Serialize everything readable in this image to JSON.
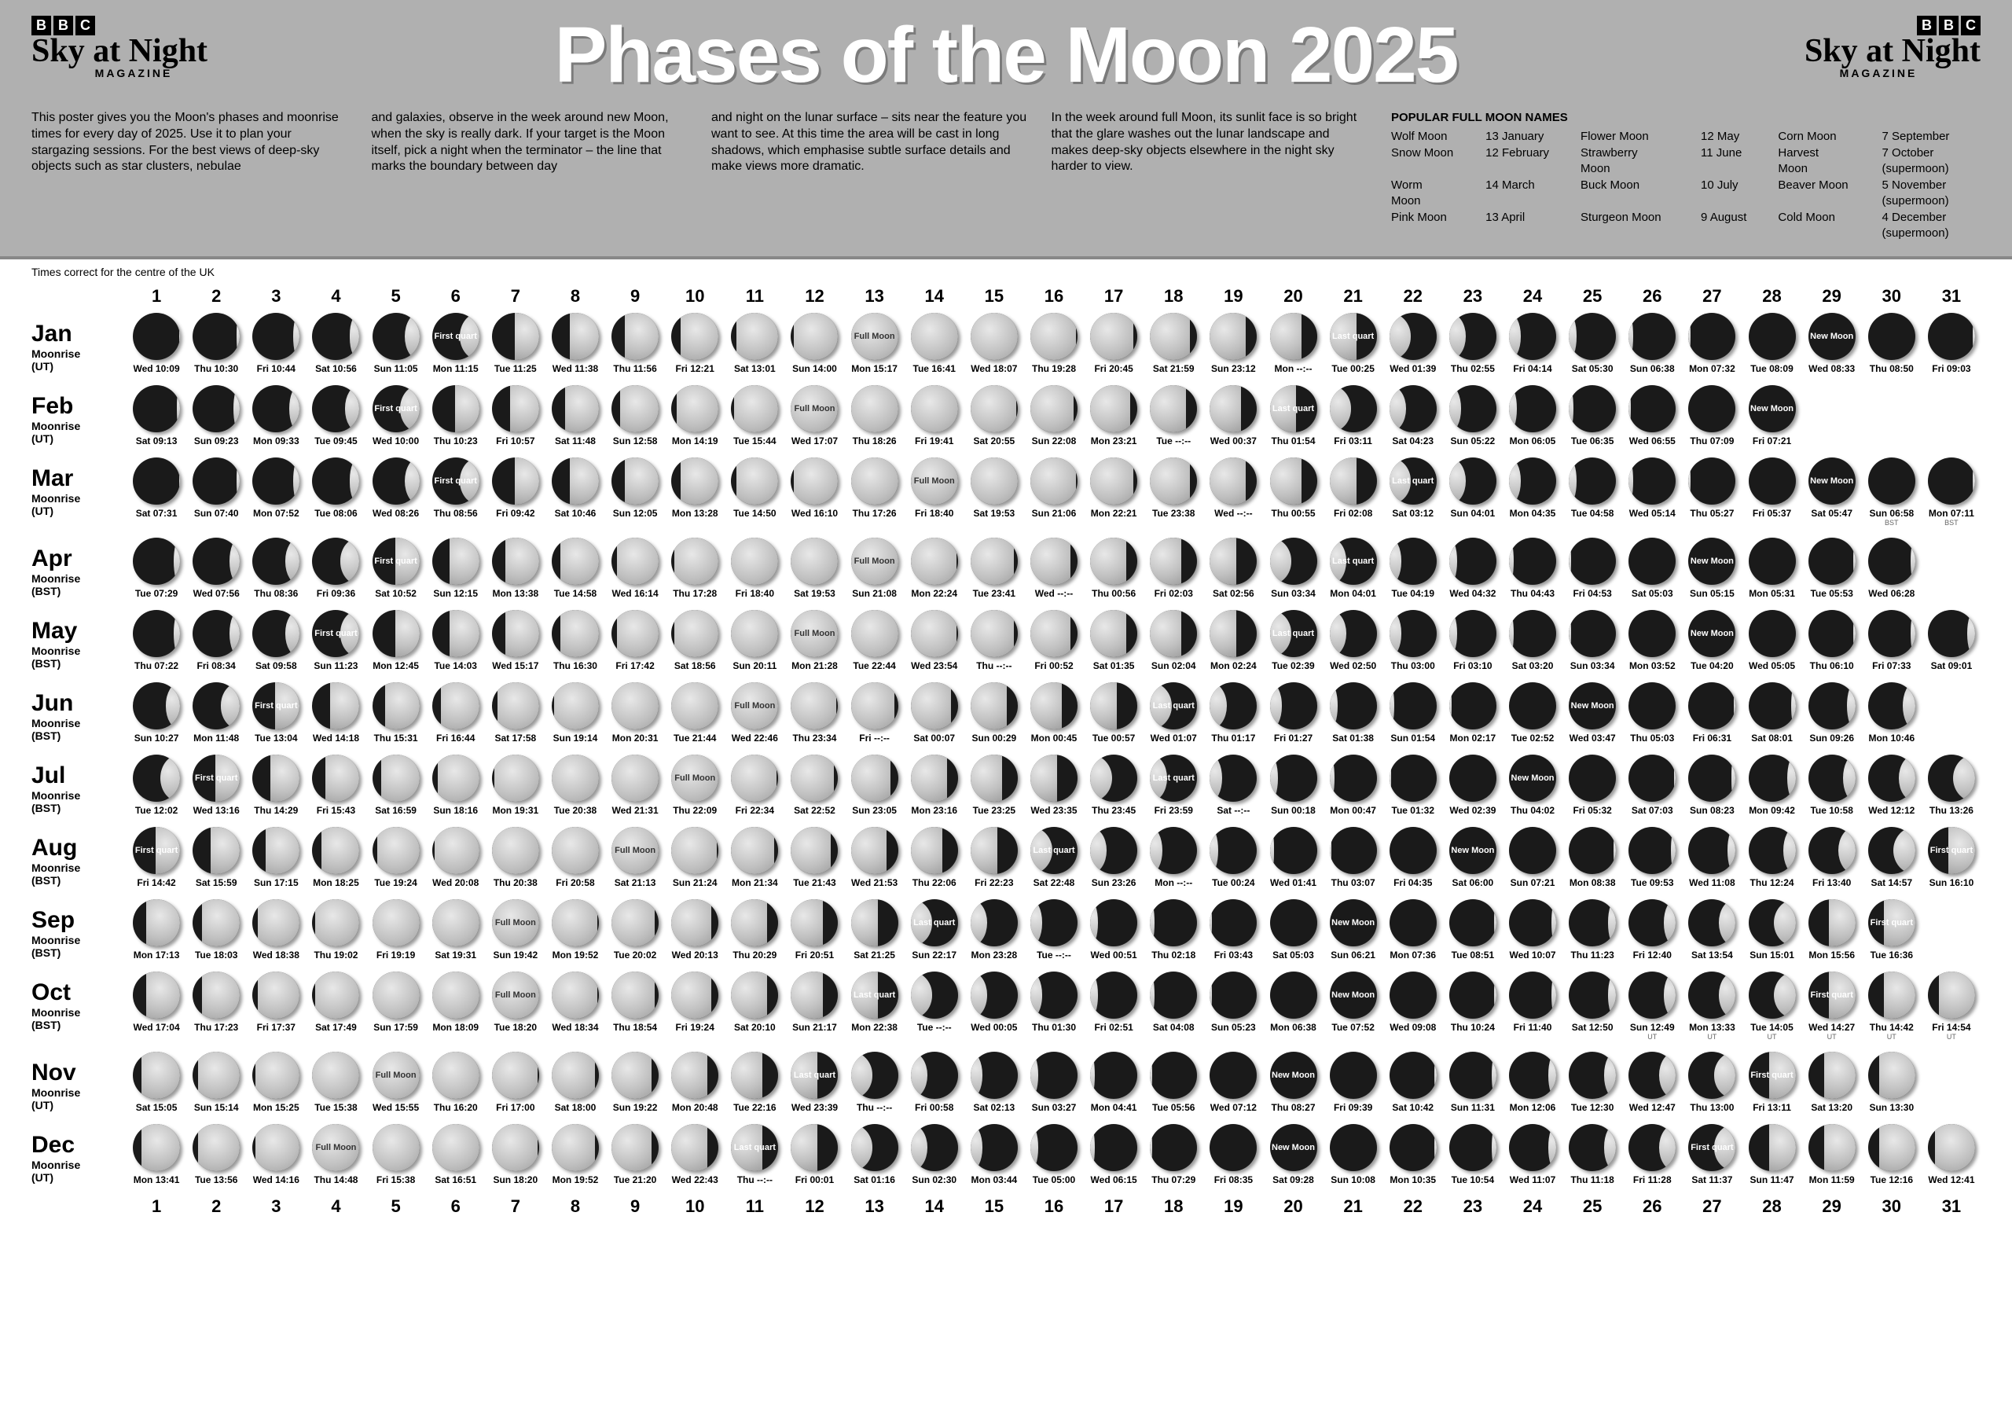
{
  "logo": {
    "bbc": [
      "B",
      "B",
      "C"
    ],
    "name": "Sky at Night",
    "sub": "MAGAZINE"
  },
  "title": "Phases of the Moon 2025",
  "intro": [
    "This poster gives you the Moon's phases and moonrise times for every day of 2025. Use it to plan your stargazing sessions. For the best views of deep-sky objects such as star clusters, nebulae",
    "and galaxies, observe in the week around new Moon, when the sky is really dark. If your target is the Moon itself, pick a night when the terminator – the line that marks the boundary between day",
    "and night on the lunar surface – sits near the feature you want to see. At this time the area will be cast in long shadows, which emphasise subtle surface details and make views more dramatic.",
    "In the week around full Moon, its sunlit face is so bright that the glare washes out the lunar landscape and makes deep-sky objects elsewhere in the night sky harder to view."
  ],
  "namesTitle": "POPULAR FULL MOON NAMES",
  "moonNames": [
    [
      "Wolf Moon",
      "13 January"
    ],
    [
      "Flower Moon",
      "12 May"
    ],
    [
      "Corn Moon",
      "7 September"
    ],
    [
      "Snow Moon",
      "12 February"
    ],
    [
      "Strawberry Moon",
      "11 June"
    ],
    [
      "Harvest Moon",
      "7 October (supermoon)"
    ],
    [
      "Worm Moon",
      "14 March"
    ],
    [
      "Buck Moon",
      "10 July"
    ],
    [
      "Beaver Moon",
      "5 November (supermoon)"
    ],
    [
      "Pink Moon",
      "13 April"
    ],
    [
      "Sturgeon Moon",
      "9 August"
    ],
    [
      "Cold Moon",
      "4 December (supermoon)"
    ]
  ],
  "note": "Times correct for the centre of the UK",
  "phaseLabels": {
    "new": "New Moon",
    "fq": "First quart",
    "full": "Full Moon",
    "lq": "Last quart"
  },
  "months": [
    {
      "name": "Jan",
      "sub": "Moonrise",
      "tz": "(UT)",
      "ndays": 31,
      "new": 29,
      "fq": 6,
      "full": 13,
      "lq": 21,
      "times": [
        "Wed 10:09",
        "Thu 10:30",
        "Fri 10:44",
        "Sat 10:56",
        "Sun 11:05",
        "Mon 11:15",
        "Tue 11:25",
        "Wed 11:38",
        "Thu 11:56",
        "Fri 12:21",
        "Sat 13:01",
        "Sun 14:00",
        "Mon 15:17",
        "Tue 16:41",
        "Wed 18:07",
        "Thu 19:28",
        "Fri 20:45",
        "Sat 21:59",
        "Sun 23:12",
        "Mon --:--",
        "Tue 00:25",
        "Wed 01:39",
        "Thu 02:55",
        "Fri 04:14",
        "Sat 05:30",
        "Sun 06:38",
        "Mon 07:32",
        "Tue 08:09",
        "Wed 08:33",
        "Thu 08:50",
        "Fri 09:03"
      ]
    },
    {
      "name": "Feb",
      "sub": "Moonrise",
      "tz": "(UT)",
      "ndays": 28,
      "new": 28,
      "fq": 5,
      "full": 12,
      "lq": 20,
      "times": [
        "Sat 09:13",
        "Sun 09:23",
        "Mon 09:33",
        "Tue 09:45",
        "Wed 10:00",
        "Thu 10:23",
        "Fri 10:57",
        "Sat 11:48",
        "Sun 12:58",
        "Mon 14:19",
        "Tue 15:44",
        "Wed 17:07",
        "Thu 18:26",
        "Fri 19:41",
        "Sat 20:55",
        "Sun 22:08",
        "Mon 23:21",
        "Tue --:--",
        "Wed 00:37",
        "Thu 01:54",
        "Fri 03:11",
        "Sat 04:23",
        "Sun 05:22",
        "Mon 06:05",
        "Tue 06:35",
        "Wed 06:55",
        "Thu 07:09",
        "Fri 07:21"
      ]
    },
    {
      "name": "Mar",
      "sub": "Moonrise",
      "tz": "(UT)",
      "ndays": 31,
      "new": 29,
      "fq": 6,
      "full": 14,
      "lq": 22,
      "times": [
        "Sat 07:31",
        "Sun 07:40",
        "Mon 07:52",
        "Tue 08:06",
        "Wed 08:26",
        "Thu 08:56",
        "Fri 09:42",
        "Sat 10:46",
        "Sun 12:05",
        "Mon 13:28",
        "Tue 14:50",
        "Wed 16:10",
        "Thu 17:26",
        "Fri 18:40",
        "Sat 19:53",
        "Sun 21:06",
        "Mon 22:21",
        "Tue 23:38",
        "Wed --:--",
        "Thu 00:55",
        "Fri 02:08",
        "Sat 03:12",
        "Sun 04:01",
        "Mon 04:35",
        "Tue 04:58",
        "Wed 05:14",
        "Thu 05:27",
        "Fri 05:37",
        "Sat 05:47",
        "Sun 06:58",
        "Mon 07:11"
      ],
      "notes": {
        "30": "BST",
        "31": "BST"
      }
    },
    {
      "name": "Apr",
      "sub": "Moonrise",
      "tz": "(BST)",
      "ndays": 30,
      "new": 27,
      "fq": 5,
      "full": 13,
      "lq": 21,
      "times": [
        "Tue 07:29",
        "Wed 07:56",
        "Thu 08:36",
        "Fri 09:36",
        "Sat 10:52",
        "Sun 12:15",
        "Mon 13:38",
        "Tue 14:58",
        "Wed 16:14",
        "Thu 17:28",
        "Fri 18:40",
        "Sat 19:53",
        "Sun 21:08",
        "Mon 22:24",
        "Tue 23:41",
        "Wed --:--",
        "Thu 00:56",
        "Fri 02:03",
        "Sat 02:56",
        "Sun 03:34",
        "Mon 04:01",
        "Tue 04:19",
        "Wed 04:32",
        "Thu 04:43",
        "Fri 04:53",
        "Sat 05:03",
        "Sun 05:15",
        "Mon 05:31",
        "Tue 05:53",
        "Wed 06:28"
      ]
    },
    {
      "name": "May",
      "sub": "Moonrise",
      "tz": "(BST)",
      "ndays": 31,
      "new": 27,
      "fq": 4,
      "full": 12,
      "lq": 20,
      "times": [
        "Thu 07:22",
        "Fri 08:34",
        "Sat 09:58",
        "Sun 11:23",
        "Mon 12:45",
        "Tue 14:03",
        "Wed 15:17",
        "Thu 16:30",
        "Fri 17:42",
        "Sat 18:56",
        "Sun 20:11",
        "Mon 21:28",
        "Tue 22:44",
        "Wed 23:54",
        "Thu --:--",
        "Fri 00:52",
        "Sat 01:35",
        "Sun 02:04",
        "Mon 02:24",
        "Tue 02:39",
        "Wed 02:50",
        "Thu 03:00",
        "Fri 03:10",
        "Sat 03:20",
        "Sun 03:34",
        "Mon 03:52",
        "Tue 04:20",
        "Wed 05:05",
        "Thu 06:10",
        "Fri 07:33",
        "Sat 09:01"
      ]
    },
    {
      "name": "Jun",
      "sub": "Moonrise",
      "tz": "(BST)",
      "ndays": 30,
      "new": 25,
      "fq": 3,
      "full": 11,
      "lq": 18,
      "times": [
        "Sun 10:27",
        "Mon 11:48",
        "Tue 13:04",
        "Wed 14:18",
        "Thu 15:31",
        "Fri 16:44",
        "Sat 17:58",
        "Sun 19:14",
        "Mon 20:31",
        "Tue 21:44",
        "Wed 22:46",
        "Thu 23:34",
        "Fri --:--",
        "Sat 00:07",
        "Sun 00:29",
        "Mon 00:45",
        "Tue 00:57",
        "Wed 01:07",
        "Thu 01:17",
        "Fri 01:27",
        "Sat 01:38",
        "Sun 01:54",
        "Mon 02:17",
        "Tue 02:52",
        "Wed 03:47",
        "Thu 05:03",
        "Fri 06:31",
        "Sat 08:01",
        "Sun 09:26",
        "Mon 10:46"
      ]
    },
    {
      "name": "Jul",
      "sub": "Moonrise",
      "tz": "(BST)",
      "ndays": 31,
      "new": 24,
      "fq": 2,
      "full": 10,
      "lq": 18,
      "times": [
        "Tue 12:02",
        "Wed 13:16",
        "Thu 14:29",
        "Fri 15:43",
        "Sat 16:59",
        "Sun 18:16",
        "Mon 19:31",
        "Tue 20:38",
        "Wed 21:31",
        "Thu 22:09",
        "Fri 22:34",
        "Sat 22:52",
        "Sun 23:05",
        "Mon 23:16",
        "Tue 23:25",
        "Wed 23:35",
        "Thu 23:45",
        "Fri 23:59",
        "Sat --:--",
        "Sun 00:18",
        "Mon 00:47",
        "Tue 01:32",
        "Wed 02:39",
        "Thu 04:02",
        "Fri 05:32",
        "Sat 07:03",
        "Sun 08:23",
        "Mon 09:42",
        "Tue 10:58",
        "Wed 12:12",
        "Thu 13:26"
      ]
    },
    {
      "name": "Aug",
      "sub": "Moonrise",
      "tz": "(BST)",
      "ndays": 31,
      "new": 23,
      "fq": 1,
      "full": 9,
      "lq": 16,
      "fq2": 31,
      "times": [
        "Fri 14:42",
        "Sat 15:59",
        "Sun 17:15",
        "Mon 18:25",
        "Tue 19:24",
        "Wed 20:08",
        "Thu 20:38",
        "Fri 20:58",
        "Sat 21:13",
        "Sun 21:24",
        "Mon 21:34",
        "Tue 21:43",
        "Wed 21:53",
        "Thu 22:06",
        "Fri 22:23",
        "Sat 22:48",
        "Sun 23:26",
        "Mon --:--",
        "Tue 00:24",
        "Wed 01:41",
        "Thu 03:07",
        "Fri 04:35",
        "Sat 06:00",
        "Sun 07:21",
        "Mon 08:38",
        "Tue 09:53",
        "Wed 11:08",
        "Thu 12:24",
        "Fri 13:40",
        "Sat 14:57",
        "Sun 16:10"
      ]
    },
    {
      "name": "Sep",
      "sub": "Moonrise",
      "tz": "(BST)",
      "ndays": 30,
      "new": 21,
      "fq": 30,
      "full": 7,
      "lq": 14,
      "times": [
        "Mon 17:13",
        "Tue 18:03",
        "Wed 18:38",
        "Thu 19:02",
        "Fri 19:19",
        "Sat 19:31",
        "Sun 19:42",
        "Mon 19:52",
        "Tue 20:02",
        "Wed 20:13",
        "Thu 20:29",
        "Fri 20:51",
        "Sat 21:25",
        "Sun 22:17",
        "Mon 23:28",
        "Tue --:--",
        "Wed 00:51",
        "Thu 02:18",
        "Fri 03:43",
        "Sat 05:03",
        "Sun 06:21",
        "Mon 07:36",
        "Tue 08:51",
        "Wed 10:07",
        "Thu 11:23",
        "Fri 12:40",
        "Sat 13:54",
        "Sun 15:01",
        "Mon 15:56",
        "Tue 16:36"
      ]
    },
    {
      "name": "Oct",
      "sub": "Moonrise",
      "tz": "(BST)",
      "ndays": 31,
      "new": 21,
      "fq": 29,
      "full": 7,
      "lq": 13,
      "times": [
        "Wed 17:04",
        "Thu 17:23",
        "Fri 17:37",
        "Sat 17:49",
        "Sun 17:59",
        "Mon 18:09",
        "Tue 18:20",
        "Wed 18:34",
        "Thu 18:54",
        "Fri 19:24",
        "Sat 20:10",
        "Sun 21:17",
        "Mon 22:38",
        "Tue --:--",
        "Wed 00:05",
        "Thu 01:30",
        "Fri 02:51",
        "Sat 04:08",
        "Sun 05:23",
        "Mon 06:38",
        "Tue 07:52",
        "Wed 09:08",
        "Thu 10:24",
        "Fri 11:40",
        "Sat 12:50",
        "Sun 12:49",
        "Mon 13:33",
        "Tue 14:05",
        "Wed 14:27",
        "Thu 14:42",
        "Fri 14:54"
      ],
      "notes": {
        "26": "UT",
        "27": "UT",
        "28": "UT",
        "29": "UT",
        "30": "UT",
        "31": "UT"
      }
    },
    {
      "name": "Nov",
      "sub": "Moonrise",
      "tz": "(UT)",
      "ndays": 30,
      "new": 20,
      "fq": 28,
      "full": 5,
      "lq": 12,
      "times": [
        "Sat 15:05",
        "Sun 15:14",
        "Mon 15:25",
        "Tue 15:38",
        "Wed 15:55",
        "Thu 16:20",
        "Fri 17:00",
        "Sat 18:00",
        "Sun 19:22",
        "Mon 20:48",
        "Tue 22:16",
        "Wed 23:39",
        "Thu --:--",
        "Fri 00:58",
        "Sat 02:13",
        "Sun 03:27",
        "Mon 04:41",
        "Tue 05:56",
        "Wed 07:12",
        "Thu 08:27",
        "Fri 09:39",
        "Sat 10:42",
        "Sun 11:31",
        "Mon 12:06",
        "Tue 12:30",
        "Wed 12:47",
        "Thu 13:00",
        "Fri 13:11",
        "Sat 13:20",
        "Sun 13:30"
      ]
    },
    {
      "name": "Dec",
      "sub": "Moonrise",
      "tz": "(UT)",
      "ndays": 31,
      "new": 20,
      "fq": 27,
      "full": 4,
      "lq": 11,
      "times": [
        "Mon 13:41",
        "Tue 13:56",
        "Wed 14:16",
        "Thu 14:48",
        "Fri 15:38",
        "Sat 16:51",
        "Sun 18:20",
        "Mon 19:52",
        "Tue 21:20",
        "Wed 22:43",
        "Thu --:--",
        "Fri 00:01",
        "Sat 01:16",
        "Sun 02:30",
        "Mon 03:44",
        "Tue 05:00",
        "Wed 06:15",
        "Thu 07:29",
        "Fri 08:35",
        "Sat 09:28",
        "Sun 10:08",
        "Mon 10:35",
        "Tue 10:54",
        "Wed 11:07",
        "Thu 11:18",
        "Fri 11:28",
        "Sat 11:37",
        "Sun 11:47",
        "Mon 11:59",
        "Tue 12:16",
        "Wed 12:41"
      ]
    }
  ],
  "colors": {
    "headerBg": "#b0b0b0",
    "moonDark": "#1a1a1a",
    "moonLight": "#d0d0d0"
  }
}
